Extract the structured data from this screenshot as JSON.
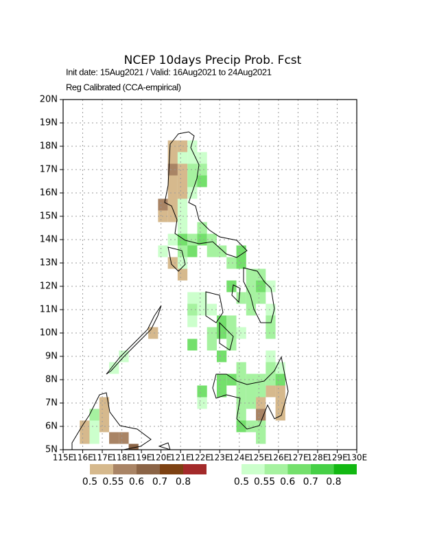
{
  "map": {
    "title": "NCEP 10days Precip Prob. Fcst",
    "init": "Init date: 15Aug2021 / Valid: 16Aug2021 to 24Aug2021",
    "calibration": "Reg Calibrated (CCA-empirical)",
    "xlim": [
      115,
      130
    ],
    "ylim": [
      5,
      20
    ],
    "lon_ticks": [
      {
        "value": 115,
        "label": "115E"
      },
      {
        "value": 116,
        "label": "116E"
      },
      {
        "value": 117,
        "label": "117E"
      },
      {
        "value": 118,
        "label": "118E"
      },
      {
        "value": 119,
        "label": "119E"
      },
      {
        "value": 120,
        "label": "120E"
      },
      {
        "value": 121,
        "label": "121E"
      },
      {
        "value": 122,
        "label": "122E"
      },
      {
        "value": 123,
        "label": "123E"
      },
      {
        "value": 124,
        "label": "124E"
      },
      {
        "value": 125,
        "label": "125E"
      },
      {
        "value": 126,
        "label": "126E"
      },
      {
        "value": 127,
        "label": "127E"
      },
      {
        "value": 128,
        "label": "128E"
      },
      {
        "value": 129,
        "label": "129E"
      },
      {
        "value": 130,
        "label": "130E"
      }
    ],
    "lat_ticks": [
      {
        "value": 5,
        "label": "5N"
      },
      {
        "value": 6,
        "label": "6N"
      },
      {
        "value": 7,
        "label": "7N"
      },
      {
        "value": 8,
        "label": "8N"
      },
      {
        "value": 9,
        "label": "9N"
      },
      {
        "value": 10,
        "label": "10N"
      },
      {
        "value": 11,
        "label": "11N"
      },
      {
        "value": 12,
        "label": "12N"
      },
      {
        "value": 13,
        "label": "13N"
      },
      {
        "value": 14,
        "label": "14N"
      },
      {
        "value": 15,
        "label": "15N"
      },
      {
        "value": 16,
        "label": "16N"
      },
      {
        "value": 17,
        "label": "17N"
      },
      {
        "value": 18,
        "label": "18N"
      },
      {
        "value": 19,
        "label": "19N"
      },
      {
        "value": 20,
        "label": "20N"
      }
    ],
    "dry": {
      "levels": [
        0.5,
        0.55,
        0.6,
        0.7,
        0.8
      ],
      "colors": [
        "#d6b98d",
        "#a98465",
        "#8b6446",
        "#7d4112",
        "#a32a2a"
      ],
      "cells": [
        {
          "lon": 120.6,
          "lat": 18.0,
          "value": 0.52
        },
        {
          "lon": 121.1,
          "lat": 18.0,
          "value": 0.52
        },
        {
          "lon": 120.6,
          "lat": 17.5,
          "value": 0.52
        },
        {
          "lon": 120.6,
          "lat": 17.0,
          "value": 0.57
        },
        {
          "lon": 121.1,
          "lat": 17.0,
          "value": 0.52
        },
        {
          "lon": 120.6,
          "lat": 16.5,
          "value": 0.52
        },
        {
          "lon": 121.1,
          "lat": 16.5,
          "value": 0.52
        },
        {
          "lon": 120.6,
          "lat": 16.0,
          "value": 0.52
        },
        {
          "lon": 121.1,
          "lat": 16.0,
          "value": 0.52
        },
        {
          "lon": 120.1,
          "lat": 15.5,
          "value": 0.57
        },
        {
          "lon": 120.6,
          "lat": 15.5,
          "value": 0.52
        },
        {
          "lon": 120.1,
          "lat": 15.0,
          "value": 0.52
        },
        {
          "lon": 120.6,
          "lat": 15.0,
          "value": 0.52
        },
        {
          "lon": 120.6,
          "lat": 13.0,
          "value": 0.52
        },
        {
          "lon": 121.1,
          "lat": 12.5,
          "value": 0.52
        },
        {
          "lon": 119.6,
          "lat": 10.0,
          "value": 0.52
        },
        {
          "lon": 125.6,
          "lat": 7.5,
          "value": 0.52
        },
        {
          "lon": 126.1,
          "lat": 7.5,
          "value": 0.52
        },
        {
          "lon": 125.1,
          "lat": 7.0,
          "value": 0.52
        },
        {
          "lon": 126.1,
          "lat": 7.0,
          "value": 0.52
        },
        {
          "lon": 125.1,
          "lat": 6.5,
          "value": 0.57
        },
        {
          "lon": 126.1,
          "lat": 6.5,
          "value": 0.52
        },
        {
          "lon": 117.1,
          "lat": 7.0,
          "value": 0.52
        },
        {
          "lon": 117.1,
          "lat": 6.5,
          "value": 0.52
        },
        {
          "lon": 116.1,
          "lat": 6.0,
          "value": 0.52
        },
        {
          "lon": 117.1,
          "lat": 6.0,
          "value": 0.52
        },
        {
          "lon": 117.6,
          "lat": 5.5,
          "value": 0.57
        },
        {
          "lon": 118.1,
          "lat": 5.5,
          "value": 0.57
        },
        {
          "lon": 116.1,
          "lat": 5.5,
          "value": 0.52
        },
        {
          "lon": 118.6,
          "lat": 5.0,
          "value": 0.62
        }
      ]
    },
    "wet": {
      "levels": [
        0.5,
        0.55,
        0.6,
        0.7,
        0.8
      ],
      "colors": [
        "#ccffcc",
        "#a6f2a0",
        "#74e06c",
        "#46d046",
        "#12b812"
      ],
      "cells": [
        {
          "lon": 121.6,
          "lat": 18.0,
          "value": 0.52
        },
        {
          "lon": 121.1,
          "lat": 17.5,
          "value": 0.52
        },
        {
          "lon": 121.6,
          "lat": 17.5,
          "value": 0.52
        },
        {
          "lon": 122.1,
          "lat": 17.5,
          "value": 0.52
        },
        {
          "lon": 121.6,
          "lat": 17.0,
          "value": 0.57
        },
        {
          "lon": 122.1,
          "lat": 17.0,
          "value": 0.57
        },
        {
          "lon": 121.6,
          "lat": 16.5,
          "value": 0.57
        },
        {
          "lon": 122.1,
          "lat": 16.5,
          "value": 0.62
        },
        {
          "lon": 121.6,
          "lat": 16.0,
          "value": 0.52
        },
        {
          "lon": 121.1,
          "lat": 15.5,
          "value": 0.52
        },
        {
          "lon": 121.1,
          "lat": 15.0,
          "value": 0.52
        },
        {
          "lon": 121.1,
          "lat": 14.5,
          "value": 0.52
        },
        {
          "lon": 122.1,
          "lat": 14.5,
          "value": 0.57
        },
        {
          "lon": 120.6,
          "lat": 14.0,
          "value": 0.52
        },
        {
          "lon": 121.1,
          "lat": 14.0,
          "value": 0.62
        },
        {
          "lon": 121.6,
          "lat": 14.0,
          "value": 0.57
        },
        {
          "lon": 122.1,
          "lat": 14.0,
          "value": 0.62
        },
        {
          "lon": 122.6,
          "lat": 14.0,
          "value": 0.57
        },
        {
          "lon": 120.1,
          "lat": 13.5,
          "value": 0.52
        },
        {
          "lon": 121.1,
          "lat": 13.5,
          "value": 0.57
        },
        {
          "lon": 121.6,
          "lat": 13.5,
          "value": 0.62
        },
        {
          "lon": 122.6,
          "lat": 13.5,
          "value": 0.57
        },
        {
          "lon": 123.1,
          "lat": 13.5,
          "value": 0.57
        },
        {
          "lon": 124.1,
          "lat": 13.5,
          "value": 0.62
        },
        {
          "lon": 121.1,
          "lat": 13.0,
          "value": 0.52
        },
        {
          "lon": 123.6,
          "lat": 13.0,
          "value": 0.57
        },
        {
          "lon": 124.1,
          "lat": 13.0,
          "value": 0.62
        },
        {
          "lon": 124.6,
          "lat": 12.5,
          "value": 0.57
        },
        {
          "lon": 125.1,
          "lat": 12.5,
          "value": 0.57
        },
        {
          "lon": 123.6,
          "lat": 12.0,
          "value": 0.62
        },
        {
          "lon": 124.6,
          "lat": 12.0,
          "value": 0.57
        },
        {
          "lon": 125.1,
          "lat": 12.0,
          "value": 0.62
        },
        {
          "lon": 125.6,
          "lat": 12.0,
          "value": 0.52
        },
        {
          "lon": 121.6,
          "lat": 11.5,
          "value": 0.52
        },
        {
          "lon": 122.1,
          "lat": 11.5,
          "value": 0.52
        },
        {
          "lon": 124.1,
          "lat": 11.5,
          "value": 0.57
        },
        {
          "lon": 124.6,
          "lat": 11.5,
          "value": 0.57
        },
        {
          "lon": 125.1,
          "lat": 11.5,
          "value": 0.57
        },
        {
          "lon": 121.6,
          "lat": 11.0,
          "value": 0.57
        },
        {
          "lon": 122.1,
          "lat": 11.0,
          "value": 0.52
        },
        {
          "lon": 122.6,
          "lat": 11.0,
          "value": 0.52
        },
        {
          "lon": 124.6,
          "lat": 11.0,
          "value": 0.57
        },
        {
          "lon": 125.6,
          "lat": 11.0,
          "value": 0.52
        },
        {
          "lon": 121.6,
          "lat": 10.5,
          "value": 0.52
        },
        {
          "lon": 123.1,
          "lat": 10.5,
          "value": 0.62
        },
        {
          "lon": 123.6,
          "lat": 10.5,
          "value": 0.57
        },
        {
          "lon": 125.6,
          "lat": 10.5,
          "value": 0.57
        },
        {
          "lon": 122.6,
          "lat": 10.0,
          "value": 0.57
        },
        {
          "lon": 123.1,
          "lat": 10.0,
          "value": 0.62
        },
        {
          "lon": 123.6,
          "lat": 10.0,
          "value": 0.57
        },
        {
          "lon": 124.1,
          "lat": 10.0,
          "value": 0.52
        },
        {
          "lon": 125.6,
          "lat": 10.0,
          "value": 0.57
        },
        {
          "lon": 121.6,
          "lat": 9.5,
          "value": 0.62
        },
        {
          "lon": 122.6,
          "lat": 9.5,
          "value": 0.57
        },
        {
          "lon": 123.6,
          "lat": 9.5,
          "value": 0.57
        },
        {
          "lon": 123.1,
          "lat": 9.0,
          "value": 0.62
        },
        {
          "lon": 125.6,
          "lat": 9.0,
          "value": 0.52
        },
        {
          "lon": 124.1,
          "lat": 8.5,
          "value": 0.57
        },
        {
          "lon": 125.6,
          "lat": 8.5,
          "value": 0.57
        },
        {
          "lon": 126.1,
          "lat": 8.5,
          "value": 0.52
        },
        {
          "lon": 123.1,
          "lat": 8.0,
          "value": 0.62
        },
        {
          "lon": 123.6,
          "lat": 8.0,
          "value": 0.62
        },
        {
          "lon": 124.1,
          "lat": 8.0,
          "value": 0.57
        },
        {
          "lon": 124.6,
          "lat": 8.0,
          "value": 0.57
        },
        {
          "lon": 125.1,
          "lat": 8.0,
          "value": 0.57
        },
        {
          "lon": 125.6,
          "lat": 8.0,
          "value": 0.57
        },
        {
          "lon": 126.1,
          "lat": 8.0,
          "value": 0.62
        },
        {
          "lon": 122.1,
          "lat": 7.5,
          "value": 0.62
        },
        {
          "lon": 123.1,
          "lat": 7.5,
          "value": 0.62
        },
        {
          "lon": 124.1,
          "lat": 7.5,
          "value": 0.57
        },
        {
          "lon": 124.6,
          "lat": 7.5,
          "value": 0.57
        },
        {
          "lon": 125.1,
          "lat": 7.5,
          "value": 0.57
        },
        {
          "lon": 122.1,
          "lat": 7.0,
          "value": 0.52
        },
        {
          "lon": 124.1,
          "lat": 7.0,
          "value": 0.57
        },
        {
          "lon": 124.6,
          "lat": 7.0,
          "value": 0.57
        },
        {
          "lon": 124.1,
          "lat": 6.5,
          "value": 0.57
        },
        {
          "lon": 124.1,
          "lat": 6.0,
          "value": 0.62
        },
        {
          "lon": 124.6,
          "lat": 6.0,
          "value": 0.57
        },
        {
          "lon": 125.1,
          "lat": 6.0,
          "value": 0.57
        },
        {
          "lon": 125.1,
          "lat": 5.5,
          "value": 0.57
        },
        {
          "lon": 116.6,
          "lat": 6.5,
          "value": 0.57
        },
        {
          "lon": 116.6,
          "lat": 6.0,
          "value": 0.52
        },
        {
          "lon": 116.6,
          "lat": 5.5,
          "value": 0.52
        },
        {
          "lon": 118.1,
          "lat": 9.0,
          "value": 0.52
        },
        {
          "lon": 117.6,
          "lat": 8.5,
          "value": 0.52
        }
      ]
    }
  }
}
